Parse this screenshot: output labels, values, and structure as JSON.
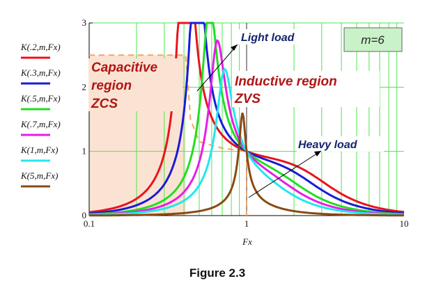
{
  "chart_data": {
    "type": "line",
    "x_scale": "log",
    "xlim": [
      0.1,
      10
    ],
    "ylim": [
      0,
      3
    ],
    "x_ticks": [
      "0.1",
      "1",
      "10"
    ],
    "y_ticks": [
      "0",
      "1",
      "2",
      "3"
    ],
    "xlabel": "Fx",
    "ylabel": "",
    "m": 6,
    "grid": true,
    "legend_position": "left, outside plot",
    "series": [
      {
        "name": "K(.2,m,Fx)",
        "k": 0.2,
        "color": "#e8141c"
      },
      {
        "name": "K(.3,m,Fx)",
        "k": 0.3,
        "color": "#1a1ad8"
      },
      {
        "name": "K(.5,m,Fx)",
        "k": 0.5,
        "color": "#22dd22"
      },
      {
        "name": "K(.7,m,Fx)",
        "k": 0.7,
        "color": "#e61ee6"
      },
      {
        "name": "K(1,m,Fx)",
        "k": 1,
        "color": "#22e8ec"
      },
      {
        "name": "K(5,m,Fx)",
        "k": 5,
        "color": "#8a4a12"
      }
    ],
    "boundary_curve": {
      "color": "#f4a460",
      "peak_x": 0.41,
      "peak_y": 2.5
    },
    "annotations": {
      "capacitive": [
        "Capacitive",
        "region",
        "ZCS"
      ],
      "inductive": [
        "Inductive region",
        "ZVS"
      ],
      "light_load": "Light load",
      "heavy_load": "Heavy load",
      "m_label": "m=6"
    },
    "colors": {
      "capacitive_fill": "#fbe3d3",
      "grid_minor": "#4ce64c",
      "region_text": "#b01515",
      "load_text": "#14246b",
      "m_box_fill": "#c9f2c9"
    }
  },
  "caption": "Figure 2.3"
}
